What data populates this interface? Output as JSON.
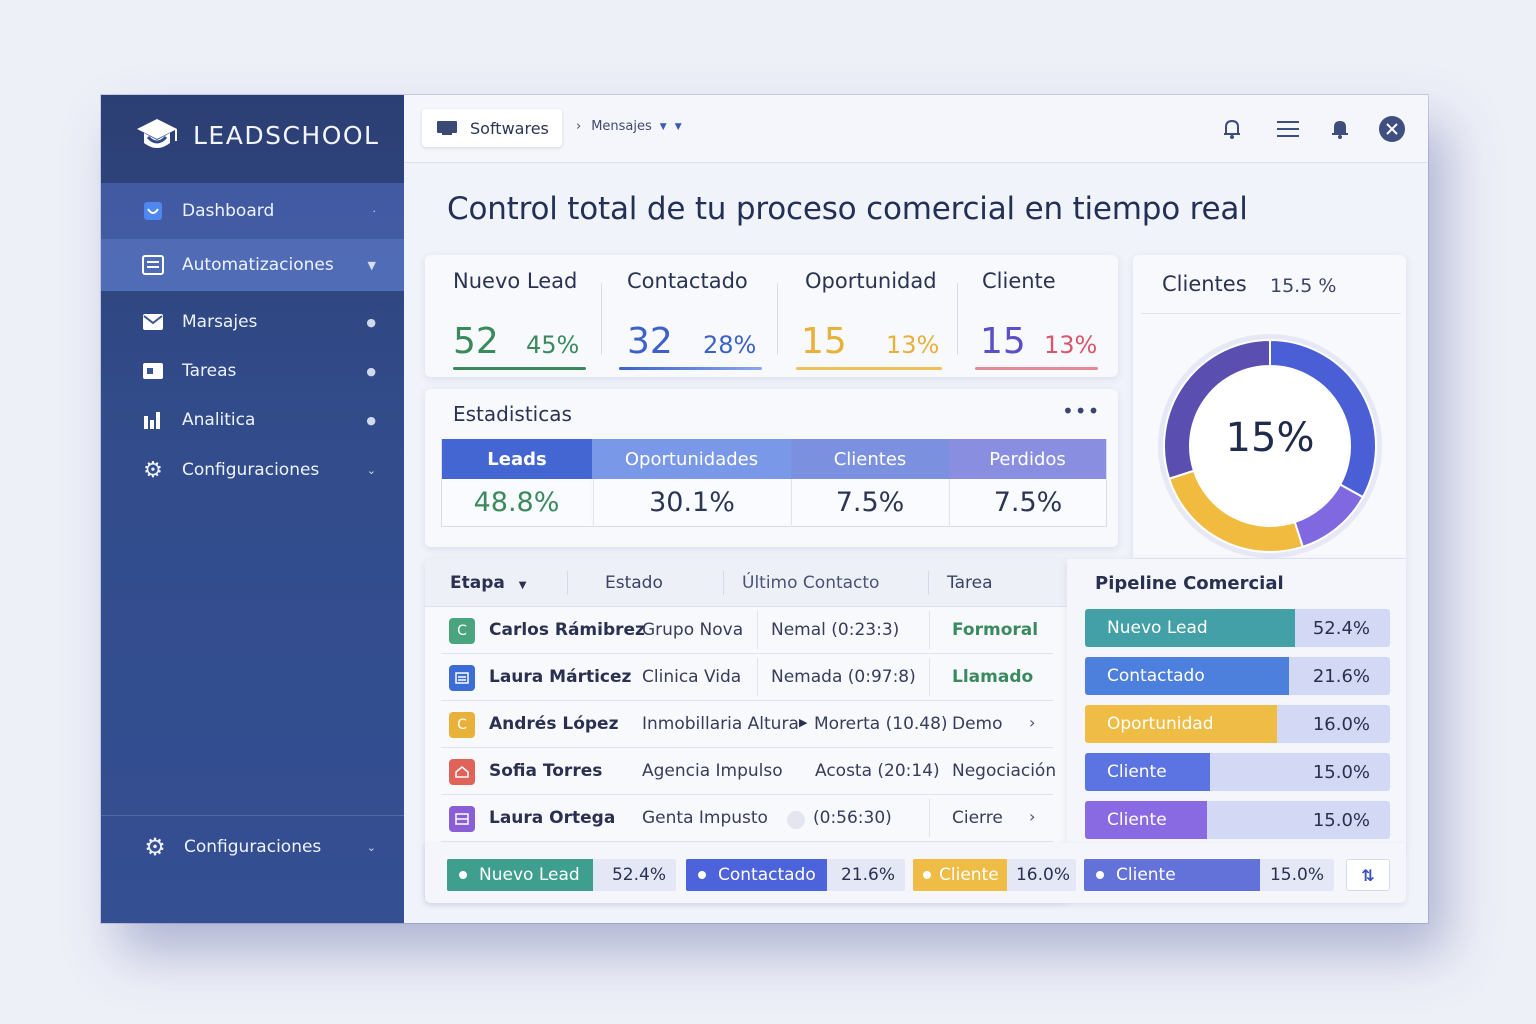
{
  "brand": {
    "name": "LEADSCHOOL"
  },
  "sidebar": {
    "items": [
      {
        "label": "Dashboard",
        "icon": "dashboard-icon"
      },
      {
        "label": "Automatizaciones",
        "icon": "list-icon"
      },
      {
        "label": "Marsajes",
        "icon": "mail-icon"
      },
      {
        "label": "Tareas",
        "icon": "task-icon"
      },
      {
        "label": "Analitica",
        "icon": "bar-chart-icon"
      },
      {
        "label": "Configuraciones",
        "icon": "gear-icon"
      }
    ],
    "footer_label": "Configuraciones"
  },
  "topbar": {
    "breadcrumb_root": "Softwares",
    "breadcrumb_child": "Mensajes"
  },
  "page_title": "Control total de tu proceso comercial en tiempo real",
  "kpis": [
    {
      "label": "Nuevo Lead",
      "value": "52",
      "pct": "45%",
      "color": "#3a8a5e"
    },
    {
      "label": "Contactado",
      "value": "32",
      "pct": "28%",
      "color": "#3c62c9"
    },
    {
      "label": "Oportunidad",
      "value": "15",
      "pct": "13%",
      "color": "#e8b13a"
    },
    {
      "label": "Cliente",
      "value": "15",
      "pct": "13%",
      "color": "#d9566a"
    }
  ],
  "clientes_card": {
    "title": "Clientes",
    "subtitle": "15.5 %",
    "center": "15%"
  },
  "chart_data": {
    "type": "pie",
    "title": "",
    "categories": [
      "Azul",
      "Violeta",
      "Amarillo",
      "Morado"
    ],
    "values": [
      33,
      12,
      25,
      30
    ],
    "colors": [
      "#4a5fd6",
      "#8069e0",
      "#f0bb3e",
      "#5a4fb0"
    ],
    "center_label": "15%"
  },
  "stats": {
    "title": "Estadisticas",
    "columns": [
      {
        "label": "Leads",
        "value": "48.8%"
      },
      {
        "label": "Oportunidades",
        "value": "30.1%"
      },
      {
        "label": "Clientes",
        "value": "7.5%"
      },
      {
        "label": "Perdidos",
        "value": "7.5%"
      }
    ]
  },
  "table": {
    "headers": [
      "Etapa",
      "Estado",
      "Último Contacto",
      "Tarea"
    ],
    "rows": [
      {
        "initial": "C",
        "name": "Carlos Rámibrez",
        "company": "Grupo Nova",
        "contact": "Nemal (0:23:3)",
        "task": "Formoral",
        "color": "#4aa57f"
      },
      {
        "initial": "",
        "name": "Laura Márticez",
        "company": "Clinica Vida",
        "contact": "Nemada (0:97:8)",
        "task": "Llamado",
        "color": "#3c6cd6"
      },
      {
        "initial": "C",
        "name": "Andrés López",
        "company": "Inmobillaria Altura",
        "contact": "Morerta (10.48)",
        "task": "Demo",
        "color": "#e8b13a"
      },
      {
        "initial": "",
        "name": "Sofia Torres",
        "company": "Agencia Impulso",
        "contact": "Acosta (20:14)",
        "task": "Negociación",
        "color": "#e0635a"
      },
      {
        "initial": "",
        "name": "Laura Ortega",
        "company": "Genta Impusto",
        "contact": "(0:56:30)",
        "task": "Cierre",
        "color": "#8a5fd6"
      }
    ]
  },
  "pipeline": {
    "title": "Pipeline Comercial",
    "rows": [
      {
        "label": "Nuevo Lead",
        "value": "52.4%",
        "pct": 0.69,
        "color": "#43a0a6"
      },
      {
        "label": "Contactado",
        "value": "21.6%",
        "pct": 0.67,
        "color": "#4d7fdc"
      },
      {
        "label": "Oportunidad",
        "value": "16.0%",
        "pct": 0.63,
        "color": "#efbd45"
      },
      {
        "label": "Cliente",
        "value": "15.0%",
        "pct": 0.41,
        "color": "#5c74e2"
      },
      {
        "label": "Cliente",
        "value": "15.0%",
        "pct": 0.4,
        "color": "#8a6ae2"
      }
    ]
  },
  "chips": [
    {
      "label": "Nuevo Lead",
      "value": "52.4%",
      "color": "#3e9f8e"
    },
    {
      "label": "Contactado",
      "value": "21.6%",
      "color": "#4d63dc"
    },
    {
      "label": "Cliente",
      "value": "16.0%",
      "color": "#efbd45"
    },
    {
      "label": "Cliente",
      "value": "15.0%",
      "color": "#6372d8"
    }
  ]
}
